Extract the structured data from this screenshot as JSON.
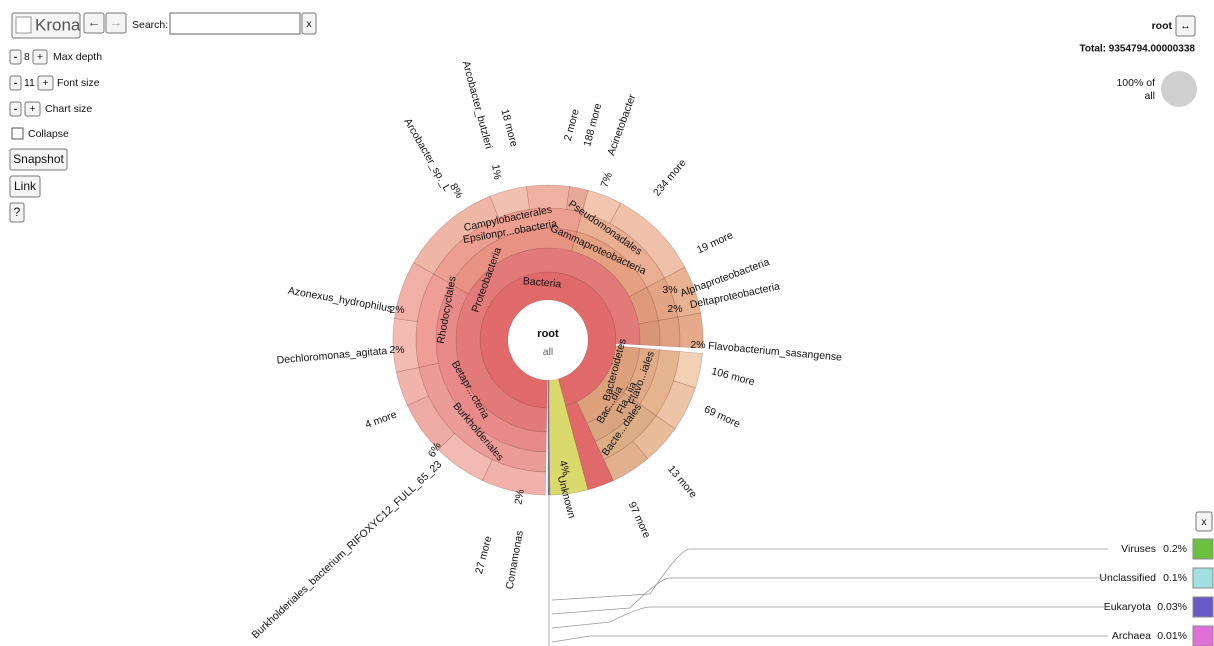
{
  "toolbar": {
    "logo": "Krona",
    "back": "←",
    "forward": "→",
    "search_label": "Search:",
    "clear": "x"
  },
  "controls": {
    "max_depth": {
      "minus": "-",
      "value": "8",
      "plus": "+",
      "label": "Max depth"
    },
    "font_size": {
      "minus": "-",
      "value": "11",
      "plus": "+",
      "label": "Font size"
    },
    "chart_size": {
      "minus": "-",
      "plus": "+",
      "label": "Chart size"
    },
    "collapse": "Collapse",
    "snapshot": "Snapshot",
    "link": "Link",
    "help": "?"
  },
  "details": {
    "name": "root",
    "toggle": "↔",
    "total": "Total: 9354794.00000338",
    "percent": "100% of",
    "of": "all"
  },
  "chart": {
    "center_name": "root",
    "center_sub": "all",
    "labels": [
      "Bacteria",
      "Proteobacteria",
      "Bacteroidetes",
      "Unknown",
      "4%",
      "Betapr...cteria",
      "Burkholderiales",
      "Rhodocyclales",
      "Epsilonpr...obacteria",
      "Campylobacterales",
      "Gammaproteobacteria",
      "Pseudomonadales",
      "Bac...dia",
      "Fla...iia",
      "Flavo...iales",
      "Bacte...dales",
      "3%",
      "Alphaproteobacteria",
      "2%",
      "Deltaproteobacteria",
      "1%",
      "8%",
      "7%",
      "2%",
      "2%",
      "6%",
      "2%",
      "2%",
      "Arcobacter_sp._L",
      "Arcobacter_butzleri",
      "18 more",
      "2 more",
      "188 more",
      "Acinetobacter",
      "234 more",
      "19 more",
      "Flavobacterium_sasangense",
      "106 more",
      "69 more",
      "13 more",
      "97 more",
      "Comamonas",
      "27 more",
      "Burkholderiales_bacterium_RIFOXYC12_FULL_65_23",
      "4 more",
      "Dechloromonas_agitata",
      "Azonexus_hydrophilus"
    ],
    "legend_close": "x",
    "legend": [
      {
        "name": "Viruses",
        "value": "0.2%"
      },
      {
        "name": "Unclassified",
        "value": "0.1%"
      },
      {
        "name": "Eukaryota",
        "value": "0.03%"
      },
      {
        "name": "Archaea",
        "value": "0.01%"
      }
    ]
  }
}
